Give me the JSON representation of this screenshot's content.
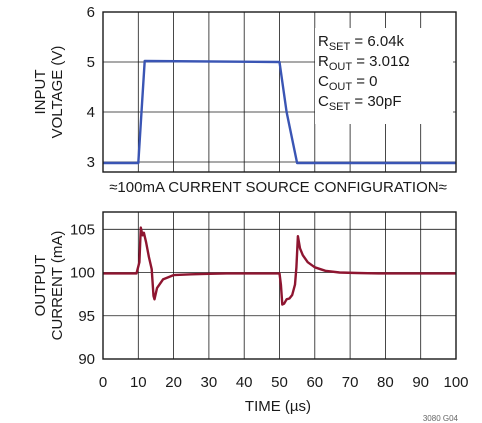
{
  "chart_data": [
    {
      "type": "line",
      "title": "",
      "ylabel_lines": [
        "INPUT",
        "VOLTAGE (V)"
      ],
      "ylim": [
        2.8,
        6
      ],
      "yticks": [
        3,
        4,
        5,
        6
      ],
      "xlim": [
        0,
        100
      ],
      "grid": true,
      "annotations": [
        {
          "main": "R",
          "sub": "SET",
          "rest": " = 6.04k"
        },
        {
          "main": "R",
          "sub": "OUT",
          "rest": " = 3.01Ω"
        },
        {
          "main": "C",
          "sub": "OUT",
          "rest": " = 0"
        },
        {
          "main": "C",
          "sub": "SET",
          "rest": " = 30pF"
        }
      ],
      "series": [
        {
          "color": "#3a55b4",
          "x": [
            0,
            10,
            11.8,
            50,
            52,
            55,
            100
          ],
          "y": [
            2.98,
            2.98,
            5.02,
            5.0,
            4.0,
            2.98,
            2.98
          ]
        }
      ]
    },
    {
      "type": "line",
      "title": "",
      "ylabel_lines": [
        "OUTPUT",
        "CURRENT (mA)"
      ],
      "ylim": [
        90,
        107
      ],
      "yticks": [
        90,
        95,
        100,
        105
      ],
      "xlim": [
        0,
        100
      ],
      "xticks": [
        0,
        10,
        20,
        30,
        40,
        50,
        60,
        70,
        80,
        90,
        100
      ],
      "xlabel": "TIME (µs)",
      "grid": true,
      "series": [
        {
          "color": "#8e1530",
          "x": [
            0,
            9.5,
            10.3,
            10.7,
            11.2,
            11.6,
            12.2,
            13,
            13.8,
            14.3,
            14.6,
            15.3,
            17,
            20,
            25,
            30,
            35,
            40,
            45,
            50,
            50.4,
            50.8,
            51.3,
            52,
            52.8,
            53.6,
            54.4,
            54.8,
            55.2,
            55.8,
            56.6,
            58,
            60,
            63,
            67,
            72,
            78,
            85,
            100
          ],
          "y": [
            99.9,
            99.9,
            101.2,
            105.2,
            104.3,
            104.6,
            103.5,
            101.8,
            100.4,
            97.3,
            96.9,
            98.2,
            99.2,
            99.7,
            99.8,
            99.85,
            99.9,
            99.9,
            99.9,
            99.9,
            98.6,
            96.3,
            96.4,
            96.9,
            97.0,
            97.4,
            98.6,
            100.6,
            104.2,
            102.8,
            102.0,
            101.2,
            100.6,
            100.2,
            100.0,
            99.95,
            99.9,
            99.9,
            99.9
          ]
        }
      ]
    }
  ],
  "divider_label": "≈100mA CURRENT SOURCE CONFIGURATION≈",
  "figure_id": "3080 G04"
}
